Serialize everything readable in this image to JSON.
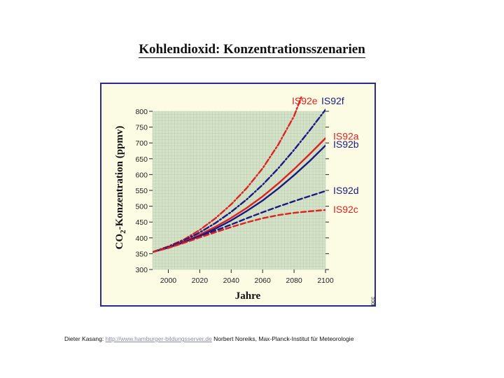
{
  "title": "Kohlendioxid: Konzentrationsszenarien",
  "footer": {
    "author": "Dieter Kasang:",
    "link": "http://www.hamburger-bildungsserver.de",
    "credit": "Norbert Noreiks, Max-Planck-Institut für Meteorologie"
  },
  "colors": {
    "red": "#dd2222",
    "blue": "#1a1a80",
    "plot_bg": "#d4e2c8",
    "frame_bg": "#fcfbe4",
    "frame_border": "#2a2a8a"
  },
  "chart_data": {
    "type": "line",
    "xlabel": "Jahre",
    "ylabel_prefix": "CO",
    "ylabel_sub": "2",
    "ylabel_suffix": "-Konzentration (ppmv)",
    "xlim": [
      1990,
      2100
    ],
    "ylim": [
      300,
      800
    ],
    "xticks": [
      2000,
      2020,
      2040,
      2060,
      2080,
      2100
    ],
    "yticks": [
      300,
      350,
      400,
      450,
      500,
      550,
      600,
      650,
      700,
      750,
      800
    ],
    "grid": true,
    "side_mark": "ipcc",
    "series": [
      {
        "name": "IS92e",
        "color": "#dd2222",
        "dash": "8,3,2,3",
        "x": [
          1990,
          2000,
          2010,
          2020,
          2030,
          2040,
          2050,
          2060,
          2070,
          2080,
          2085
        ],
        "y": [
          355,
          373,
          395,
          425,
          462,
          506,
          558,
          620,
          695,
          785,
          850
        ]
      },
      {
        "name": "IS92f",
        "color": "#1a1a80",
        "dash": "8,3,2,3",
        "x": [
          1990,
          2000,
          2010,
          2020,
          2030,
          2040,
          2050,
          2060,
          2070,
          2080,
          2090,
          2100
        ],
        "y": [
          355,
          372,
          392,
          417,
          447,
          482,
          522,
          568,
          620,
          678,
          740,
          805
        ]
      },
      {
        "name": "IS92a",
        "color": "#dd2222",
        "dash": "",
        "x": [
          1990,
          2000,
          2010,
          2020,
          2030,
          2040,
          2050,
          2060,
          2070,
          2080,
          2090,
          2100
        ],
        "y": [
          355,
          370,
          388,
          410,
          435,
          463,
          495,
          531,
          572,
          617,
          665,
          715
        ]
      },
      {
        "name": "IS92b",
        "color": "#1a1a80",
        "dash": "",
        "x": [
          1990,
          2000,
          2010,
          2020,
          2030,
          2040,
          2050,
          2060,
          2070,
          2080,
          2090,
          2100
        ],
        "y": [
          355,
          369,
          386,
          406,
          429,
          455,
          485,
          518,
          556,
          598,
          643,
          692
        ]
      },
      {
        "name": "IS92d",
        "color": "#1a1a80",
        "dash": "7,4",
        "x": [
          1990,
          2000,
          2010,
          2020,
          2030,
          2040,
          2050,
          2060,
          2070,
          2080,
          2090,
          2100
        ],
        "y": [
          355,
          369,
          386,
          404,
          423,
          442,
          462,
          481,
          499,
          516,
          532,
          548
        ]
      },
      {
        "name": "IS92c",
        "color": "#dd2222",
        "dash": "7,4",
        "x": [
          1990,
          2000,
          2010,
          2020,
          2030,
          2040,
          2050,
          2060,
          2070,
          2080,
          2090,
          2100
        ],
        "y": [
          355,
          368,
          384,
          401,
          418,
          434,
          449,
          462,
          472,
          479,
          484,
          488
        ]
      }
    ],
    "top_labels": [
      {
        "text": "IS92e",
        "color": "#dd2222"
      },
      {
        "text": "IS92f",
        "color": "#1a1a80"
      }
    ],
    "right_labels": [
      {
        "text": "IS92a",
        "color": "#dd2222",
        "y": 722
      },
      {
        "text": "IS92b",
        "color": "#1a1a80",
        "y": 696
      },
      {
        "text": "IS92d",
        "color": "#1a1a80",
        "y": 550
      },
      {
        "text": "IS92c",
        "color": "#dd2222",
        "y": 490
      }
    ]
  }
}
